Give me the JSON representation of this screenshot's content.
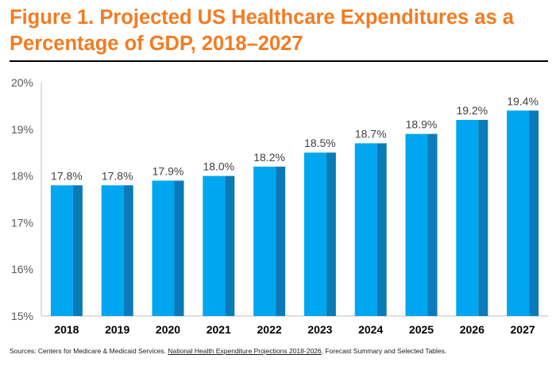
{
  "title": "Figure 1. Projected US Healthcare Expenditures as a Percentage of GDP, 2018–2027",
  "colors": {
    "title": "#f47b20",
    "bar_front": "#00a6f0",
    "bar_side": "#0a7ab8",
    "axis": "#bfbfbf"
  },
  "chart_data": {
    "type": "bar",
    "title": "Figure 1. Projected US Healthcare Expenditures as a Percentage of GDP, 2018–2027",
    "xlabel": "",
    "ylabel": "",
    "categories": [
      "2018",
      "2019",
      "2020",
      "2021",
      "2022",
      "2023",
      "2024",
      "2025",
      "2026",
      "2027"
    ],
    "values": [
      17.8,
      17.8,
      17.9,
      18.0,
      18.2,
      18.5,
      18.7,
      18.9,
      19.2,
      19.4
    ],
    "data_labels": [
      "17.8%",
      "17.8%",
      "17.9%",
      "18.0%",
      "18.2%",
      "18.5%",
      "18.7%",
      "18.9%",
      "19.2%",
      "19.4%"
    ],
    "ylim": [
      15,
      20
    ],
    "yticks": [
      15,
      16,
      17,
      18,
      19,
      20
    ],
    "ytick_labels": [
      "15%",
      "16%",
      "17%",
      "18%",
      "19%",
      "20%"
    ],
    "grid": false,
    "legend": "none"
  },
  "footnote": {
    "prefix": "Sources: Centers for Medicare & Medicaid Services. ",
    "link_text": "National Health Expenditure Projections 2018-2026",
    "suffix": ", Forecast Summary and Selected Tables."
  }
}
